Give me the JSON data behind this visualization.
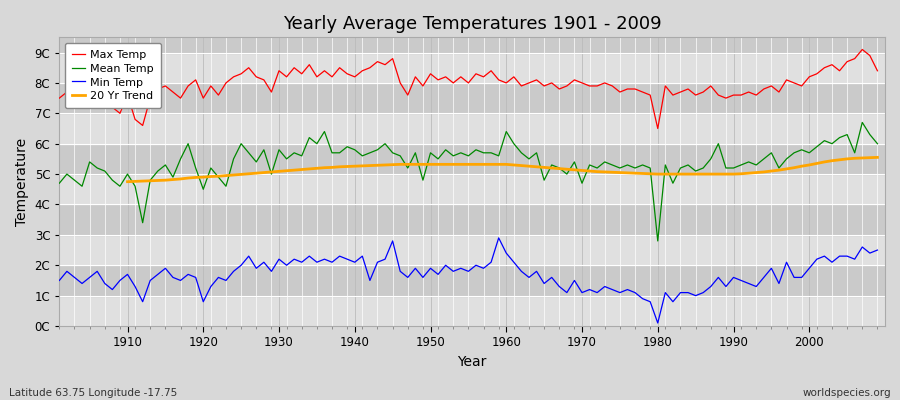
{
  "title": "Yearly Average Temperatures 1901 - 2009",
  "xlabel": "Year",
  "ylabel": "Temperature",
  "lat_lon_label": "Latitude 63.75 Longitude -17.75",
  "worldspecies_label": "worldspecies.org",
  "background_color": "#d8d8d8",
  "plot_bg_color": "#d8d8d8",
  "grid_color": "#ffffff",
  "ylim": [
    0,
    9.5
  ],
  "yticks": [
    0,
    1,
    2,
    3,
    4,
    5,
    6,
    7,
    8,
    9
  ],
  "ytick_labels": [
    "0C",
    "1C",
    "2C",
    "3C",
    "4C",
    "5C",
    "6C",
    "7C",
    "8C",
    "9C"
  ],
  "xlim": [
    1901,
    2010
  ],
  "xticks": [
    1910,
    1920,
    1930,
    1940,
    1950,
    1960,
    1970,
    1980,
    1990,
    2000
  ],
  "legend": {
    "Max Temp": "#ff0000",
    "Mean Temp": "#008800",
    "Min Temp": "#0000ff",
    "20 Yr Trend": "#ffa500"
  },
  "band_colors": [
    "#e0e0e0",
    "#cacaca"
  ],
  "band_ranges": [
    [
      0,
      1
    ],
    [
      1,
      2
    ],
    [
      2,
      3
    ],
    [
      3,
      4
    ],
    [
      4,
      5
    ],
    [
      5,
      6
    ],
    [
      6,
      7
    ],
    [
      7,
      8
    ],
    [
      8,
      9
    ],
    [
      9,
      10
    ]
  ],
  "years": [
    1901,
    1902,
    1903,
    1904,
    1905,
    1906,
    1907,
    1908,
    1909,
    1910,
    1911,
    1912,
    1913,
    1914,
    1915,
    1916,
    1917,
    1918,
    1919,
    1920,
    1921,
    1922,
    1923,
    1924,
    1925,
    1926,
    1927,
    1928,
    1929,
    1930,
    1931,
    1932,
    1933,
    1934,
    1935,
    1936,
    1937,
    1938,
    1939,
    1940,
    1941,
    1942,
    1943,
    1944,
    1945,
    1946,
    1947,
    1948,
    1949,
    1950,
    1951,
    1952,
    1953,
    1954,
    1955,
    1956,
    1957,
    1958,
    1959,
    1960,
    1961,
    1962,
    1963,
    1964,
    1965,
    1966,
    1967,
    1968,
    1969,
    1970,
    1971,
    1972,
    1973,
    1974,
    1975,
    1976,
    1977,
    1978,
    1979,
    1980,
    1981,
    1982,
    1983,
    1984,
    1985,
    1986,
    1987,
    1988,
    1989,
    1990,
    1991,
    1992,
    1993,
    1994,
    1995,
    1996,
    1997,
    1998,
    1999,
    2000,
    2001,
    2002,
    2003,
    2004,
    2005,
    2006,
    2007,
    2008,
    2009
  ],
  "max_temp": [
    7.5,
    7.7,
    7.3,
    7.5,
    7.6,
    7.8,
    7.4,
    7.2,
    7.0,
    7.6,
    6.8,
    6.6,
    7.5,
    7.8,
    7.9,
    7.7,
    7.5,
    7.9,
    8.1,
    7.5,
    7.9,
    7.6,
    8.0,
    8.2,
    8.3,
    8.5,
    8.2,
    8.1,
    7.7,
    8.4,
    8.2,
    8.5,
    8.3,
    8.6,
    8.2,
    8.4,
    8.2,
    8.5,
    8.3,
    8.2,
    8.4,
    8.5,
    8.7,
    8.6,
    8.8,
    8.0,
    7.6,
    8.2,
    7.9,
    8.3,
    8.1,
    8.2,
    8.0,
    8.2,
    8.0,
    8.3,
    8.2,
    8.4,
    8.1,
    8.0,
    8.2,
    7.9,
    8.0,
    8.1,
    7.9,
    8.0,
    7.8,
    7.9,
    8.1,
    8.0,
    7.9,
    7.9,
    8.0,
    7.9,
    7.7,
    7.8,
    7.8,
    7.7,
    7.6,
    6.5,
    7.9,
    7.6,
    7.7,
    7.8,
    7.6,
    7.7,
    7.9,
    7.6,
    7.5,
    7.6,
    7.6,
    7.7,
    7.6,
    7.8,
    7.9,
    7.7,
    8.1,
    8.0,
    7.9,
    8.2,
    8.3,
    8.5,
    8.6,
    8.4,
    8.7,
    8.8,
    9.1,
    8.9,
    8.4
  ],
  "mean_temp": [
    4.7,
    5.0,
    4.8,
    4.6,
    5.4,
    5.2,
    5.1,
    4.8,
    4.6,
    5.0,
    4.6,
    3.4,
    4.8,
    5.1,
    5.3,
    4.9,
    5.5,
    6.0,
    5.2,
    4.5,
    5.2,
    4.9,
    4.6,
    5.5,
    6.0,
    5.7,
    5.4,
    5.8,
    5.0,
    5.8,
    5.5,
    5.7,
    5.6,
    6.2,
    6.0,
    6.4,
    5.7,
    5.7,
    5.9,
    5.8,
    5.6,
    5.7,
    5.8,
    6.0,
    5.7,
    5.6,
    5.2,
    5.7,
    4.8,
    5.7,
    5.5,
    5.8,
    5.6,
    5.7,
    5.6,
    5.8,
    5.7,
    5.7,
    5.6,
    6.4,
    6.0,
    5.7,
    5.5,
    5.7,
    4.8,
    5.3,
    5.2,
    5.0,
    5.4,
    4.7,
    5.3,
    5.2,
    5.4,
    5.3,
    5.2,
    5.3,
    5.2,
    5.3,
    5.2,
    2.8,
    5.3,
    4.7,
    5.2,
    5.3,
    5.1,
    5.2,
    5.5,
    6.0,
    5.2,
    5.2,
    5.3,
    5.4,
    5.3,
    5.5,
    5.7,
    5.2,
    5.5,
    5.7,
    5.8,
    5.7,
    5.9,
    6.1,
    6.0,
    6.2,
    6.3,
    5.7,
    6.7,
    6.3,
    6.0
  ],
  "min_temp": [
    1.5,
    1.8,
    1.6,
    1.4,
    1.6,
    1.8,
    1.4,
    1.2,
    1.5,
    1.7,
    1.3,
    0.8,
    1.5,
    1.7,
    1.9,
    1.6,
    1.5,
    1.7,
    1.6,
    0.8,
    1.3,
    1.6,
    1.5,
    1.8,
    2.0,
    2.3,
    1.9,
    2.1,
    1.8,
    2.2,
    2.0,
    2.2,
    2.1,
    2.3,
    2.1,
    2.2,
    2.1,
    2.3,
    2.2,
    2.1,
    2.3,
    1.5,
    2.1,
    2.2,
    2.8,
    1.8,
    1.6,
    1.9,
    1.6,
    1.9,
    1.7,
    2.0,
    1.8,
    1.9,
    1.8,
    2.0,
    1.9,
    2.1,
    2.9,
    2.4,
    2.1,
    1.8,
    1.6,
    1.8,
    1.4,
    1.6,
    1.3,
    1.1,
    1.5,
    1.1,
    1.2,
    1.1,
    1.3,
    1.2,
    1.1,
    1.2,
    1.1,
    0.9,
    0.8,
    0.1,
    1.1,
    0.8,
    1.1,
    1.1,
    1.0,
    1.1,
    1.3,
    1.6,
    1.3,
    1.6,
    1.5,
    1.4,
    1.3,
    1.6,
    1.9,
    1.4,
    2.1,
    1.6,
    1.6,
    1.9,
    2.2,
    2.3,
    2.1,
    2.3,
    2.3,
    2.2,
    2.6,
    2.4,
    2.5
  ],
  "trend_years": [
    1910,
    1911,
    1912,
    1913,
    1914,
    1915,
    1916,
    1917,
    1918,
    1919,
    1920,
    1921,
    1922,
    1923,
    1924,
    1925,
    1926,
    1927,
    1928,
    1929,
    1930,
    1931,
    1932,
    1933,
    1934,
    1935,
    1936,
    1937,
    1938,
    1939,
    1940,
    1941,
    1942,
    1943,
    1944,
    1945,
    1946,
    1947,
    1948,
    1949,
    1950,
    1951,
    1952,
    1953,
    1954,
    1955,
    1956,
    1957,
    1958,
    1959,
    1960,
    1961,
    1962,
    1963,
    1964,
    1965,
    1966,
    1967,
    1968,
    1969,
    1970,
    1971,
    1972,
    1973,
    1974,
    1975,
    1976,
    1977,
    1978,
    1979,
    1980,
    1981,
    1982,
    1983,
    1984,
    1985,
    1986,
    1987,
    1988,
    1989,
    1990,
    1991,
    1992,
    1993,
    1994,
    1995,
    1996,
    1997,
    1998,
    1999,
    2000,
    2001,
    2002,
    2003,
    2004,
    2005,
    2006,
    2007,
    2008,
    2009
  ],
  "trend_vals": [
    4.75,
    4.76,
    4.77,
    4.78,
    4.79,
    4.8,
    4.82,
    4.84,
    4.87,
    4.89,
    4.9,
    4.92,
    4.93,
    4.95,
    4.97,
    4.99,
    5.01,
    5.03,
    5.05,
    5.07,
    5.09,
    5.11,
    5.13,
    5.15,
    5.17,
    5.19,
    5.21,
    5.22,
    5.24,
    5.25,
    5.26,
    5.27,
    5.28,
    5.29,
    5.3,
    5.31,
    5.32,
    5.32,
    5.32,
    5.32,
    5.32,
    5.32,
    5.32,
    5.32,
    5.32,
    5.32,
    5.32,
    5.32,
    5.32,
    5.32,
    5.32,
    5.3,
    5.28,
    5.26,
    5.24,
    5.22,
    5.2,
    5.18,
    5.16,
    5.14,
    5.12,
    5.1,
    5.08,
    5.07,
    5.06,
    5.05,
    5.04,
    5.03,
    5.02,
    5.01,
    5.0,
    5.0,
    5.0,
    5.0,
    5.0,
    5.0,
    5.0,
    5.0,
    5.0,
    5.0,
    5.0,
    5.01,
    5.03,
    5.05,
    5.07,
    5.1,
    5.13,
    5.17,
    5.21,
    5.26,
    5.3,
    5.35,
    5.4,
    5.44,
    5.47,
    5.5,
    5.52,
    5.53,
    5.54,
    5.55
  ]
}
